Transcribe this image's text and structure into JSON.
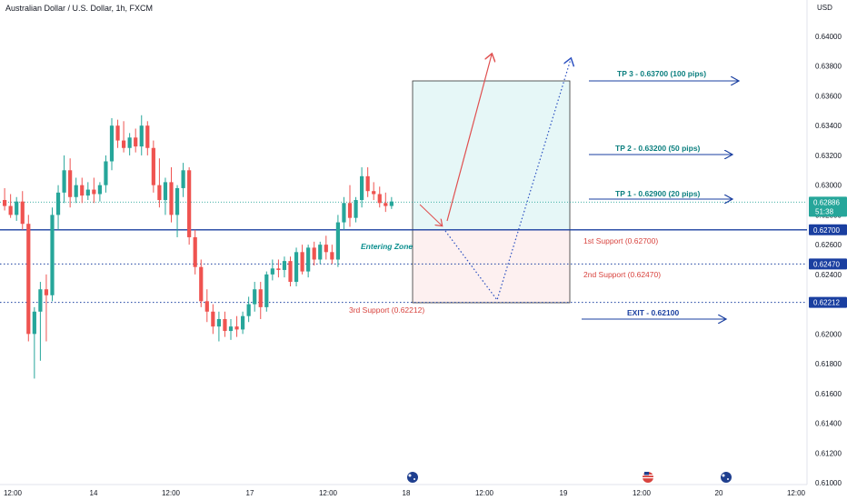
{
  "chart_data": {
    "type": "candlestick",
    "title": "Australian Dollar / U.S. Dollar, 1h, FXCM",
    "currency_label": "USD",
    "ylim": [
      0.61,
      0.641
    ],
    "y_ticks": [
      "0.64000",
      "0.63800",
      "0.63600",
      "0.63400",
      "0.63200",
      "0.63000",
      "0.62800",
      "0.62600",
      "0.62400",
      "0.62200",
      "0.62000",
      "0.61800",
      "0.61600",
      "0.61400",
      "0.61200",
      "0.61000"
    ],
    "x_ticks": [
      "12:00",
      "14",
      "12:00",
      "17",
      "12:00",
      "18",
      "12:00",
      "19",
      "12:00",
      "20",
      "12:00"
    ],
    "current_price": "0.62886",
    "countdown": "51:38",
    "levels": [
      {
        "value": 0.627,
        "label": "0.62700",
        "style": "solid"
      },
      {
        "value": 0.6247,
        "label": "0.62470",
        "style": "dotted"
      },
      {
        "value": 0.62212,
        "label": "0.62212",
        "style": "dotted"
      }
    ],
    "candles": [
      [
        0.629,
        0.6298,
        0.6283,
        0.6286
      ],
      [
        0.6286,
        0.6294,
        0.6278,
        0.628
      ],
      [
        0.628,
        0.6292,
        0.6276,
        0.6289
      ],
      [
        0.6289,
        0.6296,
        0.627,
        0.6274
      ],
      [
        0.6274,
        0.628,
        0.6195,
        0.62
      ],
      [
        0.62,
        0.6218,
        0.617,
        0.6215
      ],
      [
        0.6215,
        0.6235,
        0.6182,
        0.623
      ],
      [
        0.623,
        0.624,
        0.6195,
        0.6226
      ],
      [
        0.6226,
        0.6285,
        0.6222,
        0.628
      ],
      [
        0.628,
        0.63,
        0.627,
        0.6295
      ],
      [
        0.6295,
        0.632,
        0.6288,
        0.631
      ],
      [
        0.631,
        0.6318,
        0.6285,
        0.6292
      ],
      [
        0.6292,
        0.6305,
        0.6288,
        0.63
      ],
      [
        0.63,
        0.6305,
        0.6288,
        0.6293
      ],
      [
        0.6293,
        0.6302,
        0.629,
        0.6297
      ],
      [
        0.6297,
        0.6305,
        0.6288,
        0.6294
      ],
      [
        0.6294,
        0.6302,
        0.6289,
        0.63
      ],
      [
        0.63,
        0.632,
        0.6295,
        0.6316
      ],
      [
        0.6316,
        0.6345,
        0.631,
        0.634
      ],
      [
        0.634,
        0.6344,
        0.6325,
        0.633
      ],
      [
        0.633,
        0.6343,
        0.6322,
        0.6325
      ],
      [
        0.6325,
        0.6335,
        0.632,
        0.6332
      ],
      [
        0.6332,
        0.6338,
        0.6322,
        0.6326
      ],
      [
        0.6326,
        0.6347,
        0.632,
        0.634
      ],
      [
        0.634,
        0.6343,
        0.632,
        0.6325
      ],
      [
        0.6325,
        0.633,
        0.6295,
        0.63
      ],
      [
        0.63,
        0.6318,
        0.6285,
        0.629
      ],
      [
        0.629,
        0.6305,
        0.628,
        0.6302
      ],
      [
        0.6302,
        0.6312,
        0.6275,
        0.628
      ],
      [
        0.628,
        0.63,
        0.6265,
        0.6298
      ],
      [
        0.6298,
        0.6315,
        0.6292,
        0.631
      ],
      [
        0.631,
        0.6312,
        0.626,
        0.6265
      ],
      [
        0.6265,
        0.627,
        0.624,
        0.6245
      ],
      [
        0.6245,
        0.625,
        0.6218,
        0.6222
      ],
      [
        0.6222,
        0.623,
        0.6208,
        0.6215
      ],
      [
        0.6215,
        0.622,
        0.62,
        0.6205
      ],
      [
        0.6205,
        0.6215,
        0.6195,
        0.621
      ],
      [
        0.621,
        0.6215,
        0.6198,
        0.6202
      ],
      [
        0.6202,
        0.621,
        0.6196,
        0.6205
      ],
      [
        0.6205,
        0.6212,
        0.6198,
        0.6203
      ],
      [
        0.6203,
        0.6215,
        0.62,
        0.6212
      ],
      [
        0.6212,
        0.6225,
        0.6208,
        0.622
      ],
      [
        0.622,
        0.6235,
        0.6215,
        0.623
      ],
      [
        0.623,
        0.6235,
        0.621,
        0.6218
      ],
      [
        0.6218,
        0.6242,
        0.6215,
        0.624
      ],
      [
        0.624,
        0.625,
        0.6236,
        0.6244
      ],
      [
        0.6244,
        0.625,
        0.6238,
        0.6243
      ],
      [
        0.6243,
        0.6252,
        0.6238,
        0.6249
      ],
      [
        0.6249,
        0.6252,
        0.6232,
        0.6235
      ],
      [
        0.6235,
        0.6258,
        0.6232,
        0.6255
      ],
      [
        0.6255,
        0.626,
        0.624,
        0.6242
      ],
      [
        0.6242,
        0.626,
        0.6238,
        0.6258
      ],
      [
        0.6258,
        0.6262,
        0.6246,
        0.625
      ],
      [
        0.625,
        0.6262,
        0.6247,
        0.626
      ],
      [
        0.626,
        0.6266,
        0.625,
        0.6255
      ],
      [
        0.6255,
        0.626,
        0.6247,
        0.625
      ],
      [
        0.625,
        0.628,
        0.6245,
        0.6275
      ],
      [
        0.6275,
        0.6292,
        0.627,
        0.6288
      ],
      [
        0.6288,
        0.63,
        0.6272,
        0.6278
      ],
      [
        0.6278,
        0.6292,
        0.6275,
        0.629
      ],
      [
        0.629,
        0.6312,
        0.6285,
        0.6306
      ],
      [
        0.6306,
        0.6312,
        0.6292,
        0.6296
      ],
      [
        0.6296,
        0.6302,
        0.629,
        0.6294
      ],
      [
        0.6294,
        0.6299,
        0.6285,
        0.6288
      ],
      [
        0.6288,
        0.6295,
        0.6282,
        0.6286
      ],
      [
        0.6286,
        0.6292,
        0.6284,
        0.6289
      ]
    ],
    "annotations": {
      "tp3": "TP 3 - 0.63700 (100 pips)",
      "tp2": "TP 2 - 0.63200 (50 pips)",
      "tp1": "TP 1 - 0.62900 (20 pips)",
      "support1": "1st Support (0.62700)",
      "support2": "2nd Support (0.62470)",
      "support3": "3rd Support (0.62212)",
      "exit": "EXIT - 0.62100",
      "entering_zone": "Entering Zone"
    },
    "colors": {
      "bull": "#26a69a",
      "bear": "#ef5350",
      "tp": "#0b7f7f",
      "level_line": "#1a3fa0",
      "price_tag": "#26a69a",
      "arrow_red": "#e05050",
      "arrow_blue": "#2a4fc0"
    },
    "grid": false
  }
}
